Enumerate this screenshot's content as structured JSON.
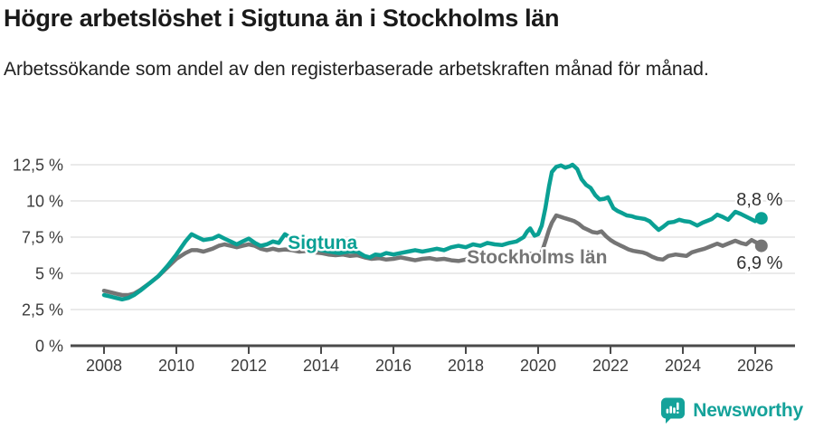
{
  "header": {
    "title": "Högre arbetslöshet i Sigtuna än i Stockholms län",
    "subtitle": "Arbetssökande som andel av den registerbaserade arbetskraften månad för månad."
  },
  "chart_data": {
    "type": "line",
    "unit": "%",
    "grid": true,
    "ylim": [
      0,
      13.4
    ],
    "x_range": [
      2008,
      2026.17
    ],
    "y_ticks": [
      {
        "value": 0,
        "label": "0 %"
      },
      {
        "value": 2.5,
        "label": "2,5 %"
      },
      {
        "value": 5,
        "label": "5 %"
      },
      {
        "value": 7.5,
        "label": "7,5 %"
      },
      {
        "value": 10,
        "label": "10 %"
      },
      {
        "value": 12.5,
        "label": "12,5 %"
      }
    ],
    "x_ticks": [
      {
        "value": 2008,
        "label": "2008"
      },
      {
        "value": 2010,
        "label": "2010"
      },
      {
        "value": 2012,
        "label": "2012"
      },
      {
        "value": 2014,
        "label": "2014"
      },
      {
        "value": 2016,
        "label": "2016"
      },
      {
        "value": 2018,
        "label": "2018"
      },
      {
        "value": 2020,
        "label": "2020"
      },
      {
        "value": 2022,
        "label": "2022"
      },
      {
        "value": 2024,
        "label": "2024"
      },
      {
        "value": 2026,
        "label": "2026"
      }
    ],
    "series": [
      {
        "name": "Stockholms län",
        "color": "#757575",
        "end_value": 6.9,
        "points": [
          [
            2008.0,
            3.8
          ],
          [
            2008.17,
            3.7
          ],
          [
            2008.33,
            3.6
          ],
          [
            2008.5,
            3.5
          ],
          [
            2008.67,
            3.5
          ],
          [
            2008.83,
            3.6
          ],
          [
            2009.0,
            3.85
          ],
          [
            2009.25,
            4.3
          ],
          [
            2009.5,
            4.8
          ],
          [
            2009.75,
            5.4
          ],
          [
            2010.0,
            6.0
          ],
          [
            2010.25,
            6.4
          ],
          [
            2010.42,
            6.6
          ],
          [
            2010.58,
            6.6
          ],
          [
            2010.75,
            6.5
          ],
          [
            2011.0,
            6.7
          ],
          [
            2011.17,
            6.9
          ],
          [
            2011.33,
            7.0
          ],
          [
            2011.5,
            6.9
          ],
          [
            2011.67,
            6.8
          ],
          [
            2011.83,
            6.9
          ],
          [
            2012.0,
            7.0
          ],
          [
            2012.17,
            6.9
          ],
          [
            2012.33,
            6.7
          ],
          [
            2012.5,
            6.6
          ],
          [
            2012.67,
            6.7
          ],
          [
            2012.83,
            6.6
          ],
          [
            2013.0,
            6.65
          ],
          [
            2013.2,
            6.6
          ],
          [
            2013.4,
            6.5
          ],
          [
            2013.6,
            6.55
          ],
          [
            2013.8,
            6.45
          ],
          [
            2014.0,
            6.4
          ],
          [
            2014.2,
            6.3
          ],
          [
            2014.4,
            6.25
          ],
          [
            2014.6,
            6.3
          ],
          [
            2014.8,
            6.2
          ],
          [
            2015.0,
            6.25
          ],
          [
            2015.2,
            6.1
          ],
          [
            2015.4,
            6.0
          ],
          [
            2015.6,
            6.05
          ],
          [
            2015.8,
            5.95
          ],
          [
            2016.0,
            6.0
          ],
          [
            2016.2,
            6.1
          ],
          [
            2016.4,
            6.0
          ],
          [
            2016.6,
            5.9
          ],
          [
            2016.8,
            6.0
          ],
          [
            2017.0,
            6.05
          ],
          [
            2017.2,
            5.95
          ],
          [
            2017.4,
            6.0
          ],
          [
            2017.6,
            5.9
          ],
          [
            2017.8,
            5.85
          ],
          [
            2018.0,
            5.95
          ],
          [
            2018.2,
            6.0
          ],
          [
            2018.4,
            5.9
          ],
          [
            2018.6,
            5.95
          ],
          [
            2018.8,
            6.0
          ],
          [
            2019.0,
            6.05
          ],
          [
            2019.2,
            6.1
          ],
          [
            2019.4,
            6.2
          ],
          [
            2019.6,
            6.3
          ],
          [
            2019.8,
            6.35
          ],
          [
            2020.0,
            6.3
          ],
          [
            2020.1,
            6.45
          ],
          [
            2020.2,
            7.2
          ],
          [
            2020.3,
            8.0
          ],
          [
            2020.38,
            8.5
          ],
          [
            2020.5,
            9.0
          ],
          [
            2020.63,
            8.9
          ],
          [
            2020.75,
            8.8
          ],
          [
            2020.88,
            8.7
          ],
          [
            2021.0,
            8.6
          ],
          [
            2021.13,
            8.4
          ],
          [
            2021.25,
            8.15
          ],
          [
            2021.38,
            8.0
          ],
          [
            2021.5,
            7.85
          ],
          [
            2021.63,
            7.8
          ],
          [
            2021.75,
            7.9
          ],
          [
            2021.88,
            7.55
          ],
          [
            2022.0,
            7.3
          ],
          [
            2022.13,
            7.1
          ],
          [
            2022.25,
            6.95
          ],
          [
            2022.38,
            6.8
          ],
          [
            2022.5,
            6.65
          ],
          [
            2022.63,
            6.55
          ],
          [
            2022.75,
            6.5
          ],
          [
            2022.88,
            6.45
          ],
          [
            2023.0,
            6.35
          ],
          [
            2023.15,
            6.15
          ],
          [
            2023.3,
            6.0
          ],
          [
            2023.45,
            5.95
          ],
          [
            2023.6,
            6.2
          ],
          [
            2023.8,
            6.3
          ],
          [
            2023.95,
            6.25
          ],
          [
            2024.1,
            6.2
          ],
          [
            2024.25,
            6.45
          ],
          [
            2024.45,
            6.6
          ],
          [
            2024.6,
            6.7
          ],
          [
            2024.8,
            6.9
          ],
          [
            2024.95,
            7.05
          ],
          [
            2025.1,
            6.9
          ],
          [
            2025.3,
            7.1
          ],
          [
            2025.45,
            7.25
          ],
          [
            2025.6,
            7.1
          ],
          [
            2025.75,
            7.0
          ],
          [
            2025.9,
            7.3
          ],
          [
            2026.05,
            7.1
          ],
          [
            2026.17,
            6.9
          ]
        ]
      },
      {
        "name": "Sigtuna",
        "color": "#0AA094",
        "end_value": 8.8,
        "points": [
          [
            2008.0,
            3.5
          ],
          [
            2008.17,
            3.4
          ],
          [
            2008.33,
            3.3
          ],
          [
            2008.5,
            3.2
          ],
          [
            2008.67,
            3.3
          ],
          [
            2008.83,
            3.5
          ],
          [
            2009.0,
            3.8
          ],
          [
            2009.25,
            4.3
          ],
          [
            2009.5,
            4.8
          ],
          [
            2009.75,
            5.5
          ],
          [
            2010.0,
            6.3
          ],
          [
            2010.25,
            7.2
          ],
          [
            2010.42,
            7.7
          ],
          [
            2010.58,
            7.5
          ],
          [
            2010.75,
            7.3
          ],
          [
            2011.0,
            7.4
          ],
          [
            2011.17,
            7.6
          ],
          [
            2011.33,
            7.4
          ],
          [
            2011.5,
            7.2
          ],
          [
            2011.67,
            7.0
          ],
          [
            2011.83,
            7.2
          ],
          [
            2012.0,
            7.4
          ],
          [
            2012.17,
            7.1
          ],
          [
            2012.33,
            6.9
          ],
          [
            2012.5,
            7.0
          ],
          [
            2012.67,
            7.2
          ],
          [
            2012.83,
            7.1
          ],
          [
            2013.0,
            7.7
          ],
          [
            2013.25,
            7.3
          ],
          [
            2013.5,
            7.0
          ],
          [
            2013.75,
            6.8
          ],
          [
            2014.0,
            6.6
          ],
          [
            2014.25,
            6.5
          ],
          [
            2014.5,
            6.4
          ],
          [
            2014.75,
            6.5
          ],
          [
            2015.0,
            6.5
          ],
          [
            2015.2,
            6.2
          ],
          [
            2015.35,
            6.1
          ],
          [
            2015.5,
            6.3
          ],
          [
            2015.65,
            6.25
          ],
          [
            2015.8,
            6.4
          ],
          [
            2016.0,
            6.3
          ],
          [
            2016.2,
            6.4
          ],
          [
            2016.4,
            6.5
          ],
          [
            2016.6,
            6.6
          ],
          [
            2016.8,
            6.5
          ],
          [
            2017.0,
            6.6
          ],
          [
            2017.2,
            6.7
          ],
          [
            2017.4,
            6.6
          ],
          [
            2017.6,
            6.8
          ],
          [
            2017.8,
            6.9
          ],
          [
            2018.0,
            6.8
          ],
          [
            2018.2,
            7.0
          ],
          [
            2018.4,
            6.9
          ],
          [
            2018.6,
            7.1
          ],
          [
            2018.8,
            7.0
          ],
          [
            2019.0,
            6.95
          ],
          [
            2019.2,
            7.1
          ],
          [
            2019.4,
            7.2
          ],
          [
            2019.6,
            7.5
          ],
          [
            2019.7,
            7.9
          ],
          [
            2019.78,
            8.1
          ],
          [
            2019.9,
            7.6
          ],
          [
            2020.0,
            7.7
          ],
          [
            2020.1,
            8.3
          ],
          [
            2020.2,
            9.5
          ],
          [
            2020.3,
            11.0
          ],
          [
            2020.38,
            12.0
          ],
          [
            2020.5,
            12.35
          ],
          [
            2020.63,
            12.45
          ],
          [
            2020.75,
            12.3
          ],
          [
            2020.88,
            12.4
          ],
          [
            2020.95,
            12.5
          ],
          [
            2021.08,
            12.2
          ],
          [
            2021.2,
            11.5
          ],
          [
            2021.33,
            11.1
          ],
          [
            2021.45,
            10.9
          ],
          [
            2021.58,
            10.4
          ],
          [
            2021.7,
            10.1
          ],
          [
            2021.83,
            10.15
          ],
          [
            2021.93,
            10.25
          ],
          [
            2022.08,
            9.5
          ],
          [
            2022.2,
            9.3
          ],
          [
            2022.33,
            9.15
          ],
          [
            2022.45,
            9.0
          ],
          [
            2022.58,
            8.95
          ],
          [
            2022.7,
            8.85
          ],
          [
            2022.83,
            8.8
          ],
          [
            2022.95,
            8.75
          ],
          [
            2023.08,
            8.6
          ],
          [
            2023.2,
            8.3
          ],
          [
            2023.33,
            8.0
          ],
          [
            2023.45,
            8.2
          ],
          [
            2023.6,
            8.5
          ],
          [
            2023.75,
            8.55
          ],
          [
            2023.9,
            8.7
          ],
          [
            2024.05,
            8.6
          ],
          [
            2024.2,
            8.55
          ],
          [
            2024.4,
            8.3
          ],
          [
            2024.55,
            8.5
          ],
          [
            2024.7,
            8.65
          ],
          [
            2024.8,
            8.75
          ],
          [
            2024.95,
            9.05
          ],
          [
            2025.1,
            8.9
          ],
          [
            2025.25,
            8.7
          ],
          [
            2025.45,
            9.25
          ],
          [
            2025.6,
            9.1
          ],
          [
            2025.8,
            8.85
          ],
          [
            2026.0,
            8.6
          ],
          [
            2026.17,
            8.8
          ]
        ]
      }
    ],
    "annotations": [
      {
        "text": "Sigtuna",
        "x": 2013.08,
        "y": 6.7,
        "anchor": "start",
        "color": "#0AA094",
        "size": 21,
        "bold": true
      },
      {
        "text": "Stockholms län",
        "x": 2018.03,
        "y": 5.69,
        "anchor": "start",
        "color": "#757575",
        "size": 21,
        "bold": true
      },
      {
        "text": "8,8 %",
        "x": 2026.12,
        "y": 9.7,
        "anchor": "middle",
        "color": "#333333",
        "size": 20,
        "bold": false
      },
      {
        "text": "6,9 %",
        "x": 2026.12,
        "y": 5.3,
        "anchor": "middle",
        "color": "#333333",
        "size": 20,
        "bold": false
      }
    ]
  },
  "footer": {
    "brand": "Newsworthy",
    "brand_color": "#14A29A"
  }
}
